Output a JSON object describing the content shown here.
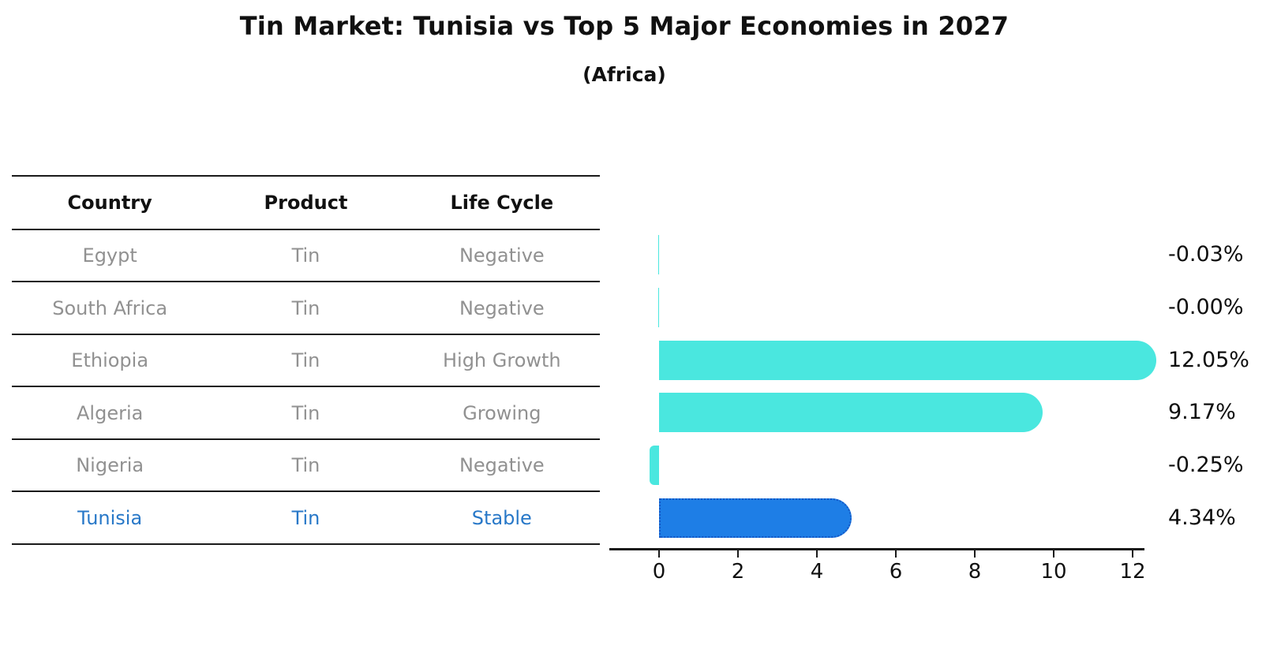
{
  "header": {
    "title": "Tin Market: Tunisia vs Top 5 Major Economies in 2027",
    "subtitle": "(Africa)"
  },
  "table": {
    "columns": [
      "Country",
      "Product",
      "Life Cycle"
    ],
    "rows": [
      {
        "country": "Egypt",
        "product": "Tin",
        "life_cycle": "Negative",
        "highlight": false
      },
      {
        "country": "South Africa",
        "product": "Tin",
        "life_cycle": "Negative",
        "highlight": false
      },
      {
        "country": "Ethiopia",
        "product": "Tin",
        "life_cycle": "High Growth",
        "highlight": false
      },
      {
        "country": "Algeria",
        "product": "Tin",
        "life_cycle": "Growing",
        "highlight": false
      },
      {
        "country": "Nigeria",
        "product": "Tin",
        "life_cycle": "Negative",
        "highlight": false
      },
      {
        "country": "Tunisia",
        "product": "Tin",
        "life_cycle": "Stable",
        "highlight": true
      }
    ]
  },
  "chart_data": {
    "type": "bar",
    "orientation": "horizontal",
    "title": "Tin Market: Tunisia vs Top 5 Major Economies in 2027",
    "subtitle": "(Africa)",
    "categories": [
      "Egypt",
      "South Africa",
      "Ethiopia",
      "Algeria",
      "Nigeria",
      "Tunisia"
    ],
    "values": [
      -0.03,
      -0.004,
      12.05,
      9.17,
      -0.25,
      4.34
    ],
    "value_labels": [
      "-0.03%",
      "-0.00%",
      "12.05%",
      "9.17%",
      "-0.25%",
      "4.34%"
    ],
    "x_ticks": [
      0,
      2,
      4,
      6,
      8,
      10,
      12
    ],
    "xlim": [
      -1.0,
      12.6
    ],
    "grid": false,
    "legend": null,
    "highlight_index": 5
  },
  "colors": {
    "bar_default": "#4ae7df",
    "bar_highlight": "#1e7ee6",
    "bar_highlight_border": "#1456c4",
    "highlight_text": "#2878c8",
    "muted_text": "#919191",
    "axis": "#1a1a1a",
    "label_text": "#0e0e0e"
  }
}
